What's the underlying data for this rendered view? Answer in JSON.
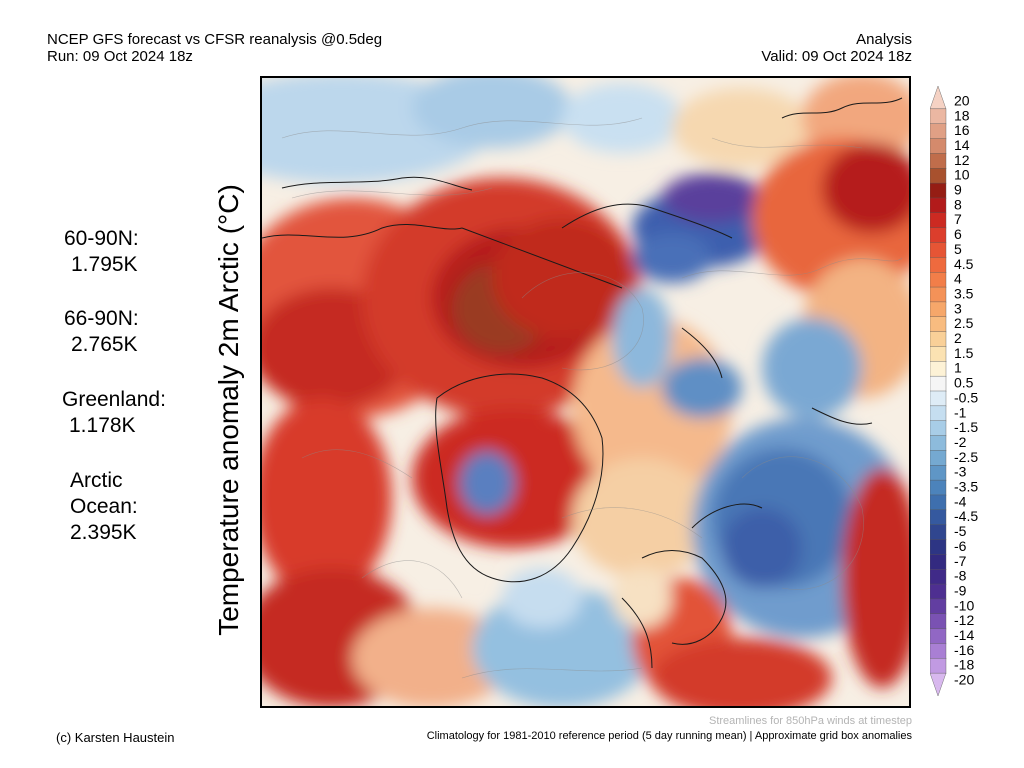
{
  "header": {
    "line1_left": "NCEP GFS forecast vs CFSR reanalysis @0.5deg",
    "line2_left": "Run: 09 Oct 2024 18z",
    "line1_right": "Analysis",
    "line2_right": "Valid: 09 Oct 2024 18z"
  },
  "axis_title": "Temperature anomaly 2m Arctic (°C)",
  "stats": [
    {
      "label": "60-90N:",
      "value": "1.795K"
    },
    {
      "label": "66-90N:",
      "value": "2.765K"
    },
    {
      "label": "Greenland:",
      "value": "1.178K"
    },
    {
      "label": "Arctic Ocean:",
      "value": "2.395K"
    }
  ],
  "colorbar": {
    "labels": [
      "20",
      "18",
      "16",
      "14",
      "12",
      "10",
      "9",
      "8",
      "7",
      "6",
      "5",
      "4.5",
      "4",
      "3.5",
      "3",
      "2.5",
      "2",
      "1.5",
      "1",
      "0.5",
      "-0.5",
      "-1",
      "-1.5",
      "-2",
      "-2.5",
      "-3",
      "-3.5",
      "-4",
      "-4.5",
      "-5",
      "-6",
      "-7",
      "-8",
      "-9",
      "-10",
      "-12",
      "-14",
      "-16",
      "-18",
      "-20"
    ],
    "colors": [
      "#f5d2c4",
      "#ebb7a2",
      "#e0a085",
      "#d48a6c",
      "#c06d4b",
      "#a8512e",
      "#951d14",
      "#b21b1b",
      "#cc2a22",
      "#dc3e2c",
      "#e65535",
      "#ee6a3e",
      "#f27e49",
      "#f49258",
      "#f6a76a",
      "#f8bc80",
      "#f9d098",
      "#fbe2b2",
      "#fdf2d6",
      "#f5f5f5",
      "#deecf6",
      "#c5def0",
      "#a8cde7",
      "#8dbbdc",
      "#75a9d1",
      "#5f96c6",
      "#4c83bb",
      "#3e6fae",
      "#35599f",
      "#30468f",
      "#2d3584",
      "#332a80",
      "#402a88",
      "#4e2f91",
      "#623ea1",
      "#7a52b3",
      "#9167c4",
      "#a97fd4",
      "#c19ae2",
      "#d8b8ee"
    ]
  },
  "footer": {
    "credit": "(c) Karsten Haustein",
    "climatology": "Climatology for 1981-2010 reference period (5 day running mean) | Approximate grid box anomalies",
    "streamlines": "Streamlines for 850hPa winds at timestep"
  }
}
